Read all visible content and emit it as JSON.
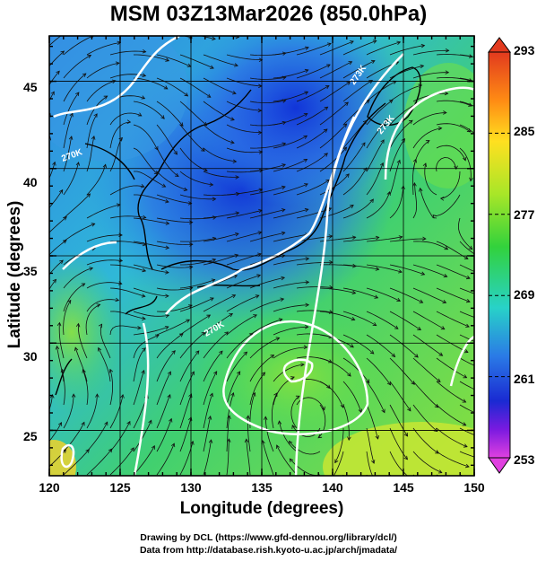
{
  "title": "MSM 03Z13Mar2026 (850.0hPa)",
  "x_axis": {
    "label": "Longitude (degrees)",
    "ticks": [
      "120",
      "125",
      "130",
      "135",
      "140",
      "145",
      "150"
    ],
    "range": [
      120,
      150
    ]
  },
  "y_axis": {
    "label": "Latitude  (degrees)",
    "ticks": [
      "25",
      "30",
      "35",
      "40",
      "45"
    ],
    "range": [
      22.4,
      47.6
    ]
  },
  "colorbar": {
    "ticks": [
      "293",
      "285",
      "277",
      "269",
      "261",
      "253"
    ],
    "range": [
      253,
      293
    ]
  },
  "contour_labels": [
    "270K",
    "273K",
    "273K",
    "270K"
  ],
  "credits": {
    "line1": "Drawing by DCL (https://www.gfd-dennou.org/library/dcl/)",
    "line2": "Data from http://database.rish.kyoto-u.ac.jp/arch/jmadata/"
  },
  "colors": {
    "cold": "#1e50e6",
    "mid": "#2ec8c8",
    "warm": "#3cdc3c",
    "hot": "#ffd700"
  }
}
